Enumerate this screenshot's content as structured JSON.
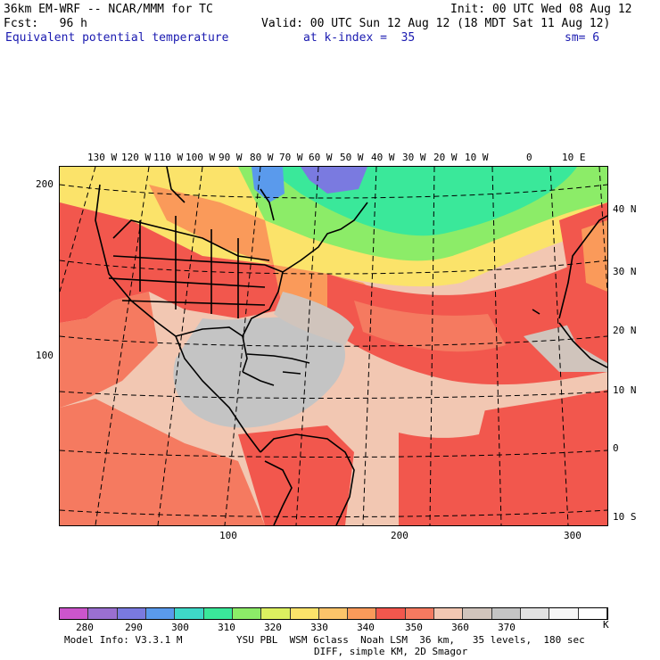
{
  "header": {
    "model": "36km EM-WRF -- NCAR/MMM for TC",
    "init": "Init: 00 UTC Wed 08 Aug 12",
    "fcst": "Fcst:   96 h",
    "valid": "Valid: 00 UTC Sun 12 Aug 12 (18 MDT Sat 11 Aug 12)",
    "field": "Equivalent potential temperature",
    "kindex": "at k-index =  35",
    "sm": "sm= 6"
  },
  "map": {
    "lon_labels": [
      "130 W",
      "120 W",
      "110 W",
      "100 W",
      "90 W",
      "80 W",
      "70 W",
      "60 W",
      "50 W",
      "40 W",
      "30 W",
      "20 W",
      "10 W",
      "0",
      "10 E"
    ],
    "lat_labels": [
      "40 N",
      "30 N",
      "20 N",
      "10 N",
      "0",
      "10 S"
    ],
    "grid_y_labels": [
      "200",
      "100"
    ],
    "grid_x_labels": [
      "100",
      "200",
      "300"
    ]
  },
  "colorbar": {
    "colors": [
      "#cc55cc",
      "#9a6fd0",
      "#7a7ae0",
      "#5a9aec",
      "#3ed8c8",
      "#3ae89a",
      "#8cec68",
      "#dcf060",
      "#fbe36a",
      "#fcc46a",
      "#fa9a5a",
      "#f2574d",
      "#f57a60",
      "#f2c7b2",
      "#d0c4bc",
      "#c4c4c4",
      "#e2e2e2",
      "#f6f6f6",
      "#ffffff"
    ],
    "labels": [
      "280",
      "290",
      "300",
      "310",
      "320",
      "330",
      "340",
      "350",
      "360",
      "370"
    ],
    "unit": "K"
  },
  "footer": {
    "line1_left": "Model Info: V3.3.1 M",
    "line1_right": "YSU PBL  WSM 6class  Noah LSM  36 km,   35 levels,  180 sec",
    "line2": "DIFF, simple KM, 2D Smagor"
  }
}
